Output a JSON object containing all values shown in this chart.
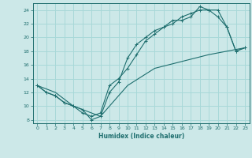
{
  "xlabel": "Humidex (Indice chaleur)",
  "bg_color": "#cce8e8",
  "grid_color": "#a8d8d8",
  "line_color": "#1e6e6e",
  "xlim": [
    -0.5,
    23.5
  ],
  "ylim": [
    7.5,
    25.0
  ],
  "xticks": [
    0,
    1,
    2,
    3,
    4,
    5,
    6,
    7,
    8,
    9,
    10,
    11,
    12,
    13,
    14,
    15,
    16,
    17,
    18,
    19,
    20,
    21,
    22,
    23
  ],
  "yticks": [
    8,
    10,
    12,
    14,
    16,
    18,
    20,
    22,
    24
  ],
  "line1_x": [
    0,
    1,
    2,
    3,
    4,
    5,
    6,
    7,
    8,
    9,
    10,
    11,
    12,
    13,
    14,
    15,
    16,
    17,
    18,
    19,
    20,
    21,
    22,
    23
  ],
  "line1_y": [
    13,
    12,
    11.5,
    10.5,
    10,
    9,
    8.5,
    9,
    13,
    14,
    15.5,
    17.5,
    19.5,
    20.5,
    21.5,
    22,
    23,
    23.5,
    24,
    24,
    24,
    21.5,
    18,
    18.5
  ],
  "line2_x": [
    0,
    1,
    2,
    3,
    4,
    5,
    6,
    7,
    8,
    9,
    10,
    11,
    12,
    13,
    14,
    15,
    16,
    17,
    18,
    19,
    20,
    21,
    22,
    23
  ],
  "line2_y": [
    13,
    12,
    11.5,
    10.5,
    10,
    9.5,
    8,
    8.5,
    12,
    13.5,
    17,
    19,
    20,
    21,
    21.5,
    22.5,
    22.5,
    23,
    24.5,
    24,
    23,
    21.5,
    18,
    18.5
  ],
  "line3_x": [
    0,
    2,
    4,
    7,
    10,
    13,
    16,
    19,
    21,
    23
  ],
  "line3_y": [
    13,
    12,
    10,
    8.5,
    13,
    15.5,
    16.5,
    17.5,
    18,
    18.5
  ]
}
